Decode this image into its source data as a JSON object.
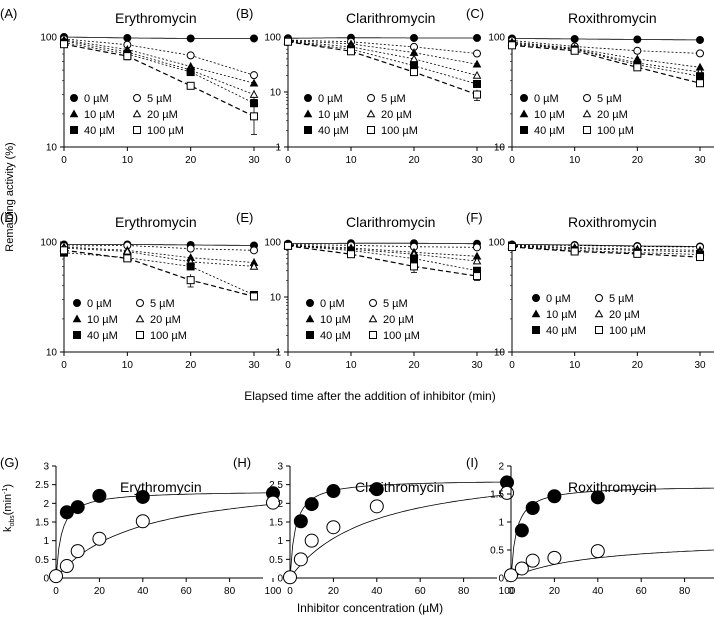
{
  "figure": {
    "ylabel_top": "Remaining activity (%)",
    "xlabel_top": "Elapsed time after the addition of inhibitor (min)",
    "ylabel_bottom_main": "k",
    "ylabel_bottom_sub": "obs",
    "ylabel_bottom_unit": "(min",
    "ylabel_bottom_exp": "-1",
    "ylabel_bottom_close": ")",
    "xlabel_bottom": "Inhibitor  concentration (µM)"
  },
  "chart_data": [
    {
      "id": "A",
      "tag": "(A)",
      "type": "line",
      "title": "Erythromycin",
      "yscale": "log",
      "xlim": [
        0,
        30
      ],
      "ylim": [
        10,
        100
      ],
      "xticks": [
        "0",
        "10",
        "20",
        "30"
      ],
      "yticks": [
        "10",
        "100"
      ],
      "x": [
        0,
        10,
        20,
        30
      ],
      "legend": [
        "0 µM",
        "5 µM",
        "10 µM",
        "20 µM",
        "40 µM",
        "100 µM"
      ],
      "series": [
        {
          "name": "0 µM",
          "values": [
            100,
            98,
            97,
            97
          ],
          "err": [
            0,
            0,
            0,
            0
          ]
        },
        {
          "name": "5 µM",
          "values": [
            96,
            85,
            68,
            45
          ],
          "err": [
            0,
            0,
            0,
            0
          ]
        },
        {
          "name": "10 µM",
          "values": [
            94,
            77,
            54,
            38
          ],
          "err": [
            0,
            0,
            0,
            0
          ]
        },
        {
          "name": "20 µM",
          "values": [
            92,
            73,
            50,
            30
          ],
          "err": [
            0,
            0,
            0,
            3
          ]
        },
        {
          "name": "40 µM",
          "values": [
            89,
            70,
            48,
            25
          ],
          "err": [
            0,
            0,
            0,
            0
          ]
        },
        {
          "name": "100 µM",
          "values": [
            86,
            67,
            36,
            19
          ],
          "err": [
            0,
            5,
            0,
            6
          ]
        }
      ]
    },
    {
      "id": "B",
      "tag": "(B)",
      "type": "line",
      "title": "Clarithromycin",
      "yscale": "log",
      "xlim": [
        0,
        30
      ],
      "ylim": [
        1,
        100
      ],
      "xticks": [
        "0",
        "10",
        "20",
        "30"
      ],
      "yticks": [
        "1",
        "10",
        "100"
      ],
      "x": [
        0,
        10,
        20,
        30
      ],
      "legend": [
        "0 µM",
        "5 µM",
        "10 µM",
        "20 µM",
        "40 µM",
        "100 µM"
      ],
      "series": [
        {
          "name": "0 µM",
          "values": [
            95,
            97,
            96,
            96
          ],
          "err": [
            0,
            0,
            0,
            0
          ]
        },
        {
          "name": "5 µM",
          "values": [
            88,
            82,
            66,
            50
          ],
          "err": [
            0,
            0,
            0,
            0
          ]
        },
        {
          "name": "10 µM",
          "values": [
            86,
            75,
            52,
            32
          ],
          "err": [
            0,
            0,
            0,
            0
          ]
        },
        {
          "name": "20 µM",
          "values": [
            84,
            66,
            40,
            20
          ],
          "err": [
            0,
            0,
            0,
            0
          ]
        },
        {
          "name": "40 µM",
          "values": [
            83,
            60,
            30,
            14
          ],
          "err": [
            0,
            0,
            0,
            0
          ]
        },
        {
          "name": "100 µM",
          "values": [
            82,
            55,
            23,
            9
          ],
          "err": [
            0,
            0,
            0,
            2
          ]
        }
      ]
    },
    {
      "id": "C",
      "tag": "(C)",
      "type": "line",
      "title": "Roxithromycin",
      "yscale": "log",
      "xlim": [
        0,
        30
      ],
      "ylim": [
        10,
        100
      ],
      "xticks": [
        "0",
        "10",
        "20",
        "30"
      ],
      "yticks": [
        "10",
        "100"
      ],
      "x": [
        0,
        10,
        20,
        30
      ],
      "legend": [
        "0 µM",
        "5 µM",
        "10 µM",
        "20 µM",
        "40 µM",
        "100 µM"
      ],
      "series": [
        {
          "name": "0 µM",
          "values": [
            97,
            96,
            95,
            94
          ],
          "err": [
            0,
            0,
            0,
            0
          ]
        },
        {
          "name": "5 µM",
          "values": [
            93,
            82,
            75,
            71
          ],
          "err": [
            0,
            0,
            0,
            0
          ]
        },
        {
          "name": "10 µM",
          "values": [
            90,
            79,
            63,
            53
          ],
          "err": [
            0,
            0,
            0,
            0
          ]
        },
        {
          "name": "20 µM",
          "values": [
            88,
            78,
            58,
            48
          ],
          "err": [
            0,
            0,
            0,
            0
          ]
        },
        {
          "name": "40 µM",
          "values": [
            86,
            77,
            56,
            44
          ],
          "err": [
            0,
            0,
            0,
            0
          ]
        },
        {
          "name": "100 µM",
          "values": [
            84,
            75,
            53,
            38
          ],
          "err": [
            0,
            0,
            0,
            0
          ]
        }
      ]
    },
    {
      "id": "D",
      "tag": "(D)",
      "type": "line",
      "title": "Erythromycin",
      "yscale": "log",
      "xlim": [
        0,
        30
      ],
      "ylim": [
        10,
        100
      ],
      "xticks": [
        "0",
        "10",
        "20",
        "30"
      ],
      "yticks": [
        "10",
        "100"
      ],
      "x": [
        0,
        10,
        20,
        30
      ],
      "legend": [
        "0 µM",
        "5 µM",
        "10 µM",
        "20 µM",
        "40 µM",
        "100 µM"
      ],
      "series": [
        {
          "name": "0 µM",
          "values": [
            95,
            95,
            94,
            93
          ],
          "err": [
            0,
            0,
            0,
            0
          ]
        },
        {
          "name": "5 µM",
          "values": [
            92,
            93,
            87,
            84
          ],
          "err": [
            0,
            0,
            0,
            0
          ]
        },
        {
          "name": "10 µM",
          "values": [
            90,
            84,
            72,
            65
          ],
          "err": [
            0,
            0,
            0,
            6
          ]
        },
        {
          "name": "20 µM",
          "values": [
            88,
            82,
            66,
            60
          ],
          "err": [
            0,
            0,
            0,
            0
          ]
        },
        {
          "name": "40 µM",
          "values": [
            80,
            72,
            60,
            33
          ],
          "err": [
            0,
            0,
            0,
            0
          ]
        },
        {
          "name": "100 µM",
          "values": [
            84,
            71,
            45,
            32
          ],
          "err": [
            0,
            0,
            6,
            0
          ]
        }
      ]
    },
    {
      "id": "E",
      "tag": "(E)",
      "type": "line",
      "title": "Clarithromycin",
      "yscale": "log",
      "xlim": [
        0,
        30
      ],
      "ylim": [
        1,
        100
      ],
      "xticks": [
        "0",
        "10",
        "20",
        "30"
      ],
      "yticks": [
        "1",
        "10",
        "100"
      ],
      "x": [
        0,
        10,
        20,
        30
      ],
      "legend": [
        "0 µM",
        "5 µM",
        "10 µM",
        "20 µM",
        "40 µM",
        "100 µM"
      ],
      "series": [
        {
          "name": "0 µM",
          "values": [
            93,
            95,
            95,
            93
          ],
          "err": [
            0,
            0,
            0,
            0
          ]
        },
        {
          "name": "5 µM",
          "values": [
            90,
            87,
            82,
            80
          ],
          "err": [
            0,
            0,
            0,
            0
          ]
        },
        {
          "name": "10 µM",
          "values": [
            88,
            78,
            65,
            55
          ],
          "err": [
            0,
            0,
            0,
            0
          ]
        },
        {
          "name": "20 µM",
          "values": [
            87,
            74,
            60,
            45
          ],
          "err": [
            0,
            0,
            0,
            0
          ]
        },
        {
          "name": "40 µM",
          "values": [
            86,
            70,
            50,
            30
          ],
          "err": [
            0,
            0,
            0,
            0
          ]
        },
        {
          "name": "100 µM",
          "values": [
            85,
            60,
            36,
            24
          ],
          "err": [
            0,
            0,
            8,
            4
          ]
        }
      ]
    },
    {
      "id": "F",
      "tag": "(F)",
      "type": "line",
      "title": "Roxithromycin",
      "yscale": "log",
      "xlim": [
        0,
        30
      ],
      "ylim": [
        10,
        100
      ],
      "xticks": [
        "0",
        "10",
        "20",
        "30"
      ],
      "yticks": [
        "10",
        "100"
      ],
      "x": [
        0,
        10,
        20,
        30
      ],
      "legend": [
        "0 µM",
        "5 µM",
        "10 µM",
        "20 µM",
        "40 µM",
        "100 µM"
      ],
      "series": [
        {
          "name": "0 µM",
          "values": [
            95,
            94,
            92,
            91
          ],
          "err": [
            0,
            0,
            0,
            0
          ]
        },
        {
          "name": "5 µM",
          "values": [
            94,
            93,
            91,
            90
          ],
          "err": [
            0,
            0,
            0,
            0
          ]
        },
        {
          "name": "10 µM",
          "values": [
            93,
            89,
            86,
            84
          ],
          "err": [
            0,
            0,
            0,
            0
          ]
        },
        {
          "name": "20 µM",
          "values": [
            92,
            87,
            84,
            81
          ],
          "err": [
            0,
            0,
            0,
            0
          ]
        },
        {
          "name": "40 µM",
          "values": [
            91,
            84,
            80,
            77
          ],
          "err": [
            0,
            0,
            0,
            0
          ]
        },
        {
          "name": "100 µM",
          "values": [
            90,
            82,
            78,
            73
          ],
          "err": [
            0,
            0,
            0,
            0
          ]
        }
      ]
    },
    {
      "id": "G",
      "tag": "(G)",
      "type": "scatter",
      "title": "Erythromycin",
      "yscale": "linear",
      "xlim": [
        0,
        100
      ],
      "ylim": [
        0,
        3
      ],
      "xticks": [
        "0",
        "20",
        "40",
        "60",
        "80",
        "100"
      ],
      "yticks": [
        "0",
        "0.5",
        "1",
        "1.5",
        "2",
        "2.5",
        "3"
      ],
      "series": [
        {
          "name": "filled",
          "x": [
            5,
            10,
            20,
            40,
            100
          ],
          "values": [
            1.76,
            1.9,
            2.2,
            2.17,
            2.27
          ]
        },
        {
          "name": "open",
          "x": [
            0,
            5,
            10,
            20,
            40,
            100
          ],
          "values": [
            0.05,
            0.32,
            0.72,
            1.05,
            1.52,
            2.02
          ]
        }
      ]
    },
    {
      "id": "H",
      "tag": "(H)",
      "type": "scatter",
      "title": "Clarithromycin",
      "yscale": "linear",
      "xlim": [
        0,
        100
      ],
      "ylim": [
        0,
        3
      ],
      "xticks": [
        "0",
        "20",
        "40",
        "60",
        "80",
        "100"
      ],
      "yticks": [
        "0",
        "0.5",
        "1",
        "1.5",
        "2",
        "2.5",
        "3"
      ],
      "series": [
        {
          "name": "filled",
          "x": [
            5,
            10,
            20,
            40,
            100
          ],
          "values": [
            1.52,
            1.98,
            2.33,
            2.38,
            2.56
          ]
        },
        {
          "name": "open",
          "x": [
            0,
            5,
            10,
            20,
            40,
            100
          ],
          "values": [
            0.02,
            0.5,
            1.0,
            1.36,
            1.92,
            2.28
          ]
        }
      ]
    },
    {
      "id": "I",
      "tag": "(I)",
      "type": "scatter",
      "title": "Roxithromycin",
      "yscale": "linear",
      "xlim": [
        0,
        100
      ],
      "ylim": [
        0,
        2
      ],
      "xticks": [
        "0",
        "20",
        "40",
        "60",
        "80",
        "100"
      ],
      "yticks": [
        "0",
        "0.5",
        "1",
        "1.5",
        "2"
      ],
      "series": [
        {
          "name": "filled",
          "x": [
            5,
            10,
            20,
            40,
            100
          ],
          "values": [
            0.85,
            1.25,
            1.46,
            1.44,
            1.6
          ]
        },
        {
          "name": "open",
          "x": [
            0,
            5,
            10,
            20,
            40,
            100
          ],
          "values": [
            0.05,
            0.17,
            0.31,
            0.36,
            0.48,
            0.52
          ]
        }
      ]
    }
  ]
}
